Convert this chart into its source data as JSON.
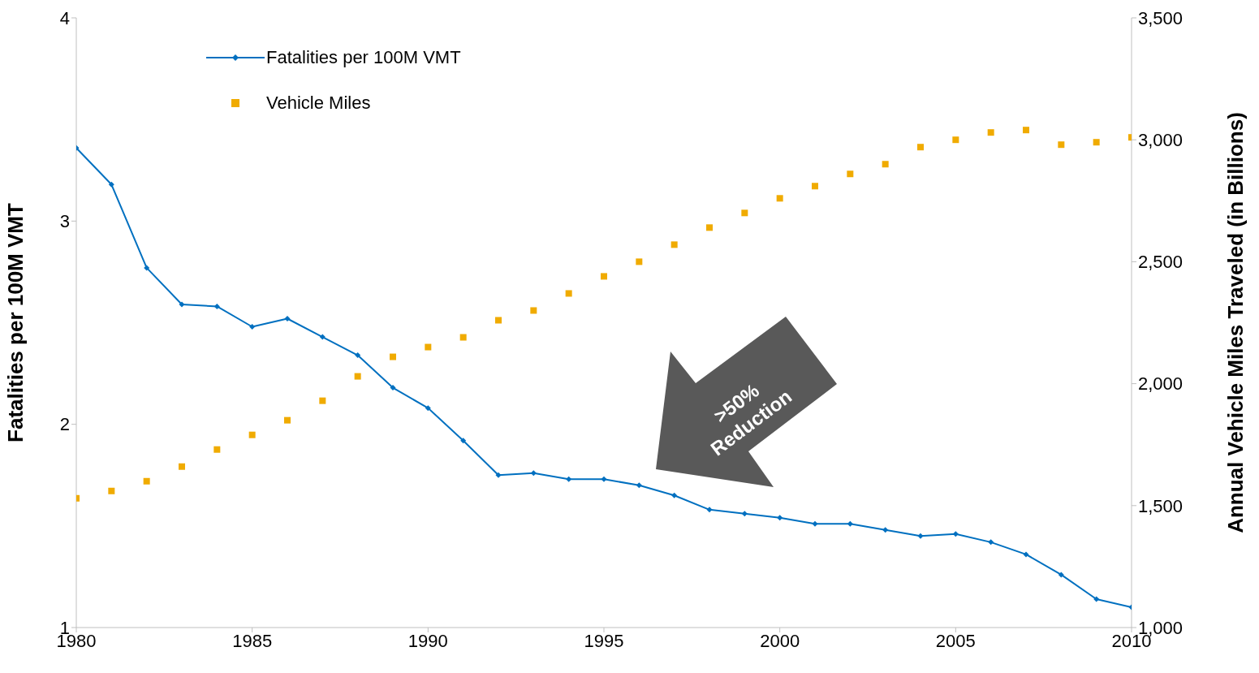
{
  "chart_data": {
    "type": "line",
    "ylabel": "Fatalities  per 100M VMT",
    "y2label": "Annual Vehicle Miles Traveled  (in Billions)",
    "x": [
      1980,
      1981,
      1982,
      1983,
      1984,
      1985,
      1986,
      1987,
      1988,
      1989,
      1990,
      1991,
      1992,
      1993,
      1994,
      1995,
      1996,
      1997,
      1998,
      1999,
      2000,
      2001,
      2002,
      2003,
      2004,
      2005,
      2006,
      2007,
      2008,
      2009,
      2010
    ],
    "series": [
      {
        "name": "Fatalities per 100M VMT",
        "color": "#0070c0",
        "marker": "diamond",
        "values": [
          3.36,
          3.18,
          2.77,
          2.59,
          2.58,
          2.48,
          2.52,
          2.43,
          2.34,
          2.18,
          2.08,
          1.92,
          1.75,
          1.76,
          1.73,
          1.73,
          1.7,
          1.65,
          1.58,
          1.56,
          1.54,
          1.51,
          1.51,
          1.48,
          1.45,
          1.46,
          1.42,
          1.36,
          1.26,
          1.14,
          1.1
        ]
      },
      {
        "name": "Vehicle Miles",
        "type": "scatter",
        "axis": "y2",
        "color": "#f0ab00",
        "marker": "square",
        "values": [
          1530,
          1560,
          1600,
          1660,
          1730,
          1790,
          1850,
          1930,
          2030,
          2110,
          2150,
          2190,
          2260,
          2300,
          2370,
          2440,
          2500,
          2570,
          2640,
          2700,
          2760,
          2810,
          2860,
          2900,
          2970,
          3000,
          3030,
          3040,
          2980,
          2990,
          3010
        ]
      }
    ],
    "xlim": [
      1980,
      2010
    ],
    "xticks": [
      1980,
      1985,
      1990,
      1995,
      2000,
      2005,
      2010
    ],
    "ylim": [
      1,
      4
    ],
    "yticks": [
      1,
      2,
      3,
      4
    ],
    "y2lim": [
      1000,
      3500
    ],
    "y2ticks": [
      {
        "value": 1000,
        "label": "1,000"
      },
      {
        "value": 1500,
        "label": "1,500"
      },
      {
        "value": 2000,
        "label": "2,000"
      },
      {
        "value": 2500,
        "label": "2,500"
      },
      {
        "value": 3000,
        "label": "3,000"
      },
      {
        "value": 3500,
        "label": "3,500"
      }
    ],
    "legend": "top left",
    "grid": false,
    "annotations": [
      ">50% Reduction"
    ]
  }
}
